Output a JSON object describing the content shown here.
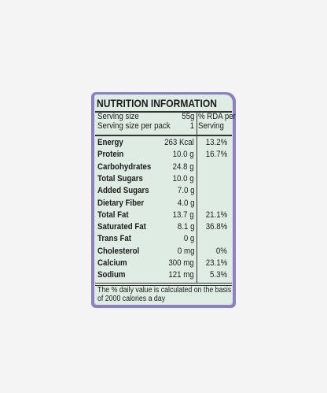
{
  "title": "NUTRITION INFORMATION",
  "serving": [
    {
      "label": "Serving size",
      "amount": "55g"
    },
    {
      "label": "Serving size per pack",
      "amount": "1"
    }
  ],
  "rda_header": [
    "% RDA per",
    "Serving"
  ],
  "nutrients": [
    {
      "name": "Energy",
      "amount": "263 Kcal",
      "rda": "13.2%"
    },
    {
      "name": "Protein",
      "amount": "10.0 g",
      "rda": "16.7%"
    },
    {
      "name": "Carbohydrates",
      "amount": "24.8 g",
      "rda": null
    },
    {
      "name": "Total Sugars",
      "amount": "10.0 g",
      "rda": null
    },
    {
      "name": "Added Sugars",
      "amount": "7.0 g",
      "rda": null
    },
    {
      "name": "Dietary Fiber",
      "amount": "4.0 g",
      "rda": null
    },
    {
      "name": "Total Fat",
      "amount": "13.7 g",
      "rda": "21.1%"
    },
    {
      "name": "Saturated Fat",
      "amount": "8.1 g",
      "rda": "36.8%"
    },
    {
      "name": "Trans Fat",
      "amount": "0 g",
      "rda": null
    },
    {
      "name": "Cholesterol",
      "amount": "0 mg",
      "rda": "0%"
    },
    {
      "name": "Calcium",
      "amount": "300 mg",
      "rda": "23.1%"
    },
    {
      "name": "Sodium",
      "amount": "121 mg",
      "rda": "5.3%"
    }
  ],
  "footnote": [
    "The % daily value is calculated on the basis",
    "of 2000 calories a day"
  ]
}
